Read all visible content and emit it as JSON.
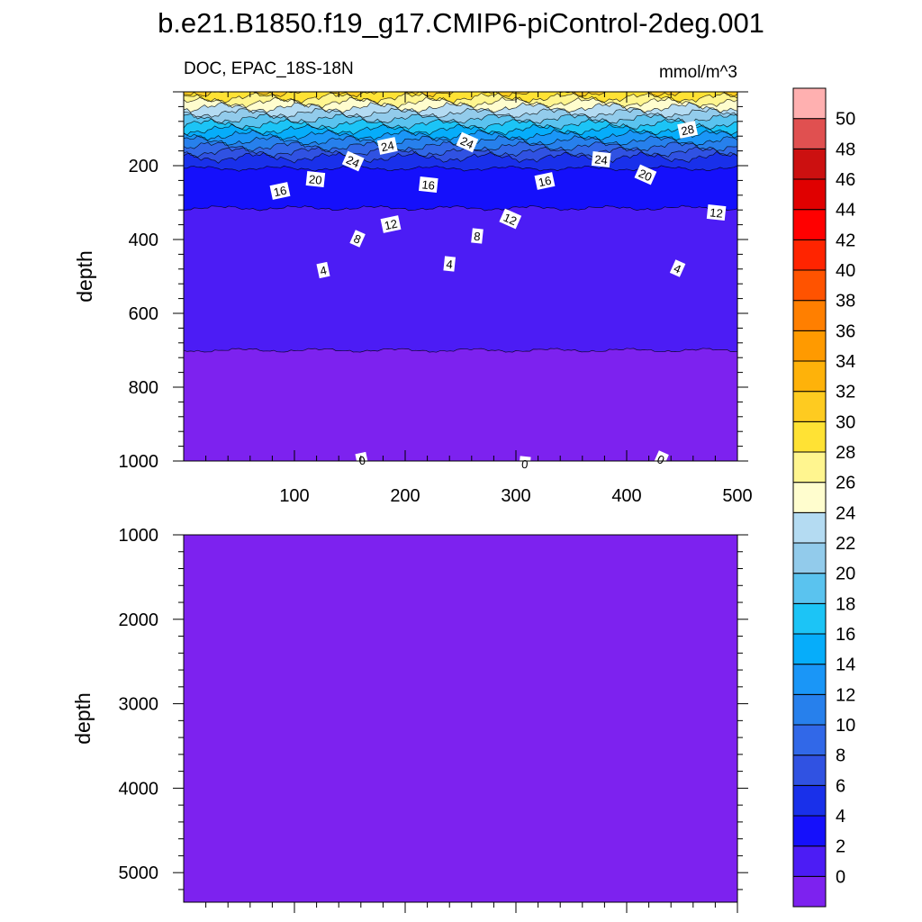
{
  "title": "b.e21.B1850.f19_g17.CMIP6-piControl-2deg.001",
  "chart_data": [
    {
      "type": "heatmap",
      "panel": "upper",
      "left_label": "DOC, EPAC_18S-18N",
      "right_label": "mmol/m^3",
      "xlabel": "",
      "ylabel": "depth",
      "xlim": [
        0,
        500
      ],
      "ylim": [
        1000,
        0
      ],
      "y_reversed": true,
      "x_ticks": [
        100,
        200,
        300,
        400,
        500
      ],
      "y_ticks": [
        200,
        400,
        600,
        800,
        1000
      ],
      "x_tick_labels": [
        "100",
        "200",
        "300",
        "400",
        "500"
      ],
      "y_tick_labels": [
        "200",
        "400",
        "600",
        "800",
        "1000"
      ],
      "depth_profile": [
        {
          "depth": 0,
          "value": 30
        },
        {
          "depth": 10,
          "value": 29
        },
        {
          "depth": 22,
          "value": 27
        },
        {
          "depth": 35,
          "value": 25
        },
        {
          "depth": 50,
          "value": 23
        },
        {
          "depth": 65,
          "value": 21
        },
        {
          "depth": 80,
          "value": 19
        },
        {
          "depth": 95,
          "value": 17
        },
        {
          "depth": 110,
          "value": 15
        },
        {
          "depth": 125,
          "value": 13
        },
        {
          "depth": 140,
          "value": 11
        },
        {
          "depth": 155,
          "value": 9
        },
        {
          "depth": 170,
          "value": 7
        },
        {
          "depth": 185,
          "value": 5
        },
        {
          "depth": 230,
          "value": 3
        },
        {
          "depth": 400,
          "value": 1
        },
        {
          "depth": 1000,
          "value": -1
        }
      ],
      "contour_labels": [
        {
          "text": "16",
          "x": 87,
          "y": 110
        },
        {
          "text": "20",
          "x": 119,
          "y": 97
        },
        {
          "text": "24",
          "x": 153,
          "y": 77
        },
        {
          "text": "24",
          "x": 184,
          "y": 60
        },
        {
          "text": "16",
          "x": 221,
          "y": 103
        },
        {
          "text": "24",
          "x": 256,
          "y": 56
        },
        {
          "text": "16",
          "x": 326,
          "y": 99
        },
        {
          "text": "24",
          "x": 377,
          "y": 75
        },
        {
          "text": "20",
          "x": 417,
          "y": 92
        },
        {
          "text": "28",
          "x": 455,
          "y": 42
        },
        {
          "text": "12",
          "x": 481,
          "y": 134
        },
        {
          "text": "8",
          "x": 157,
          "y": 163
        },
        {
          "text": "12",
          "x": 187,
          "y": 147
        },
        {
          "text": "8",
          "x": 265,
          "y": 160
        },
        {
          "text": "12",
          "x": 295,
          "y": 141
        },
        {
          "text": "4",
          "x": 126,
          "y": 198
        },
        {
          "text": "4",
          "x": 240,
          "y": 191
        },
        {
          "text": "4",
          "x": 446,
          "y": 196
        },
        {
          "text": "0",
          "x": 161,
          "y": 409
        },
        {
          "text": "0",
          "x": 308,
          "y": 413
        },
        {
          "text": "0",
          "x": 431,
          "y": 408
        }
      ]
    },
    {
      "type": "heatmap",
      "panel": "lower",
      "ylabel": "depth",
      "xlim": [
        0,
        500
      ],
      "ylim": [
        1000,
        5350
      ],
      "y_reversed": true,
      "y_ticks": [
        1000,
        2000,
        3000,
        4000,
        5000
      ],
      "y_tick_labels": [
        "1000",
        "2000",
        "3000",
        "4000",
        "5000"
      ],
      "fill_value": -1
    }
  ],
  "colorbar": {
    "levels": [
      0,
      2,
      4,
      6,
      8,
      10,
      12,
      14,
      16,
      18,
      20,
      22,
      24,
      26,
      28,
      30,
      32,
      34,
      36,
      38,
      40,
      42,
      44,
      46,
      48,
      50
    ],
    "labels": [
      "0",
      "2",
      "4",
      "6",
      "8",
      "10",
      "12",
      "14",
      "16",
      "18",
      "20",
      "22",
      "24",
      "26",
      "28",
      "30",
      "32",
      "34",
      "36",
      "38",
      "40",
      "42",
      "44",
      "46",
      "48",
      "50"
    ],
    "colors": [
      "#7d22ef",
      "#4c1cf5",
      "#1510fb",
      "#1930ea",
      "#3052e2",
      "#3168e8",
      "#2780ec",
      "#1a96f7",
      "#06adfa",
      "#1cc4f6",
      "#5ac3ef",
      "#92cbeb",
      "#b4dbf2",
      "#fffdce",
      "#fff58f",
      "#ffe234",
      "#fecb20",
      "#feb20a",
      "#ff9a00",
      "#ff7f00",
      "#ff5300",
      "#ff2400",
      "#ff0000",
      "#e00000",
      "#cc1010",
      "#e05050",
      "#ffb0b0"
    ]
  }
}
